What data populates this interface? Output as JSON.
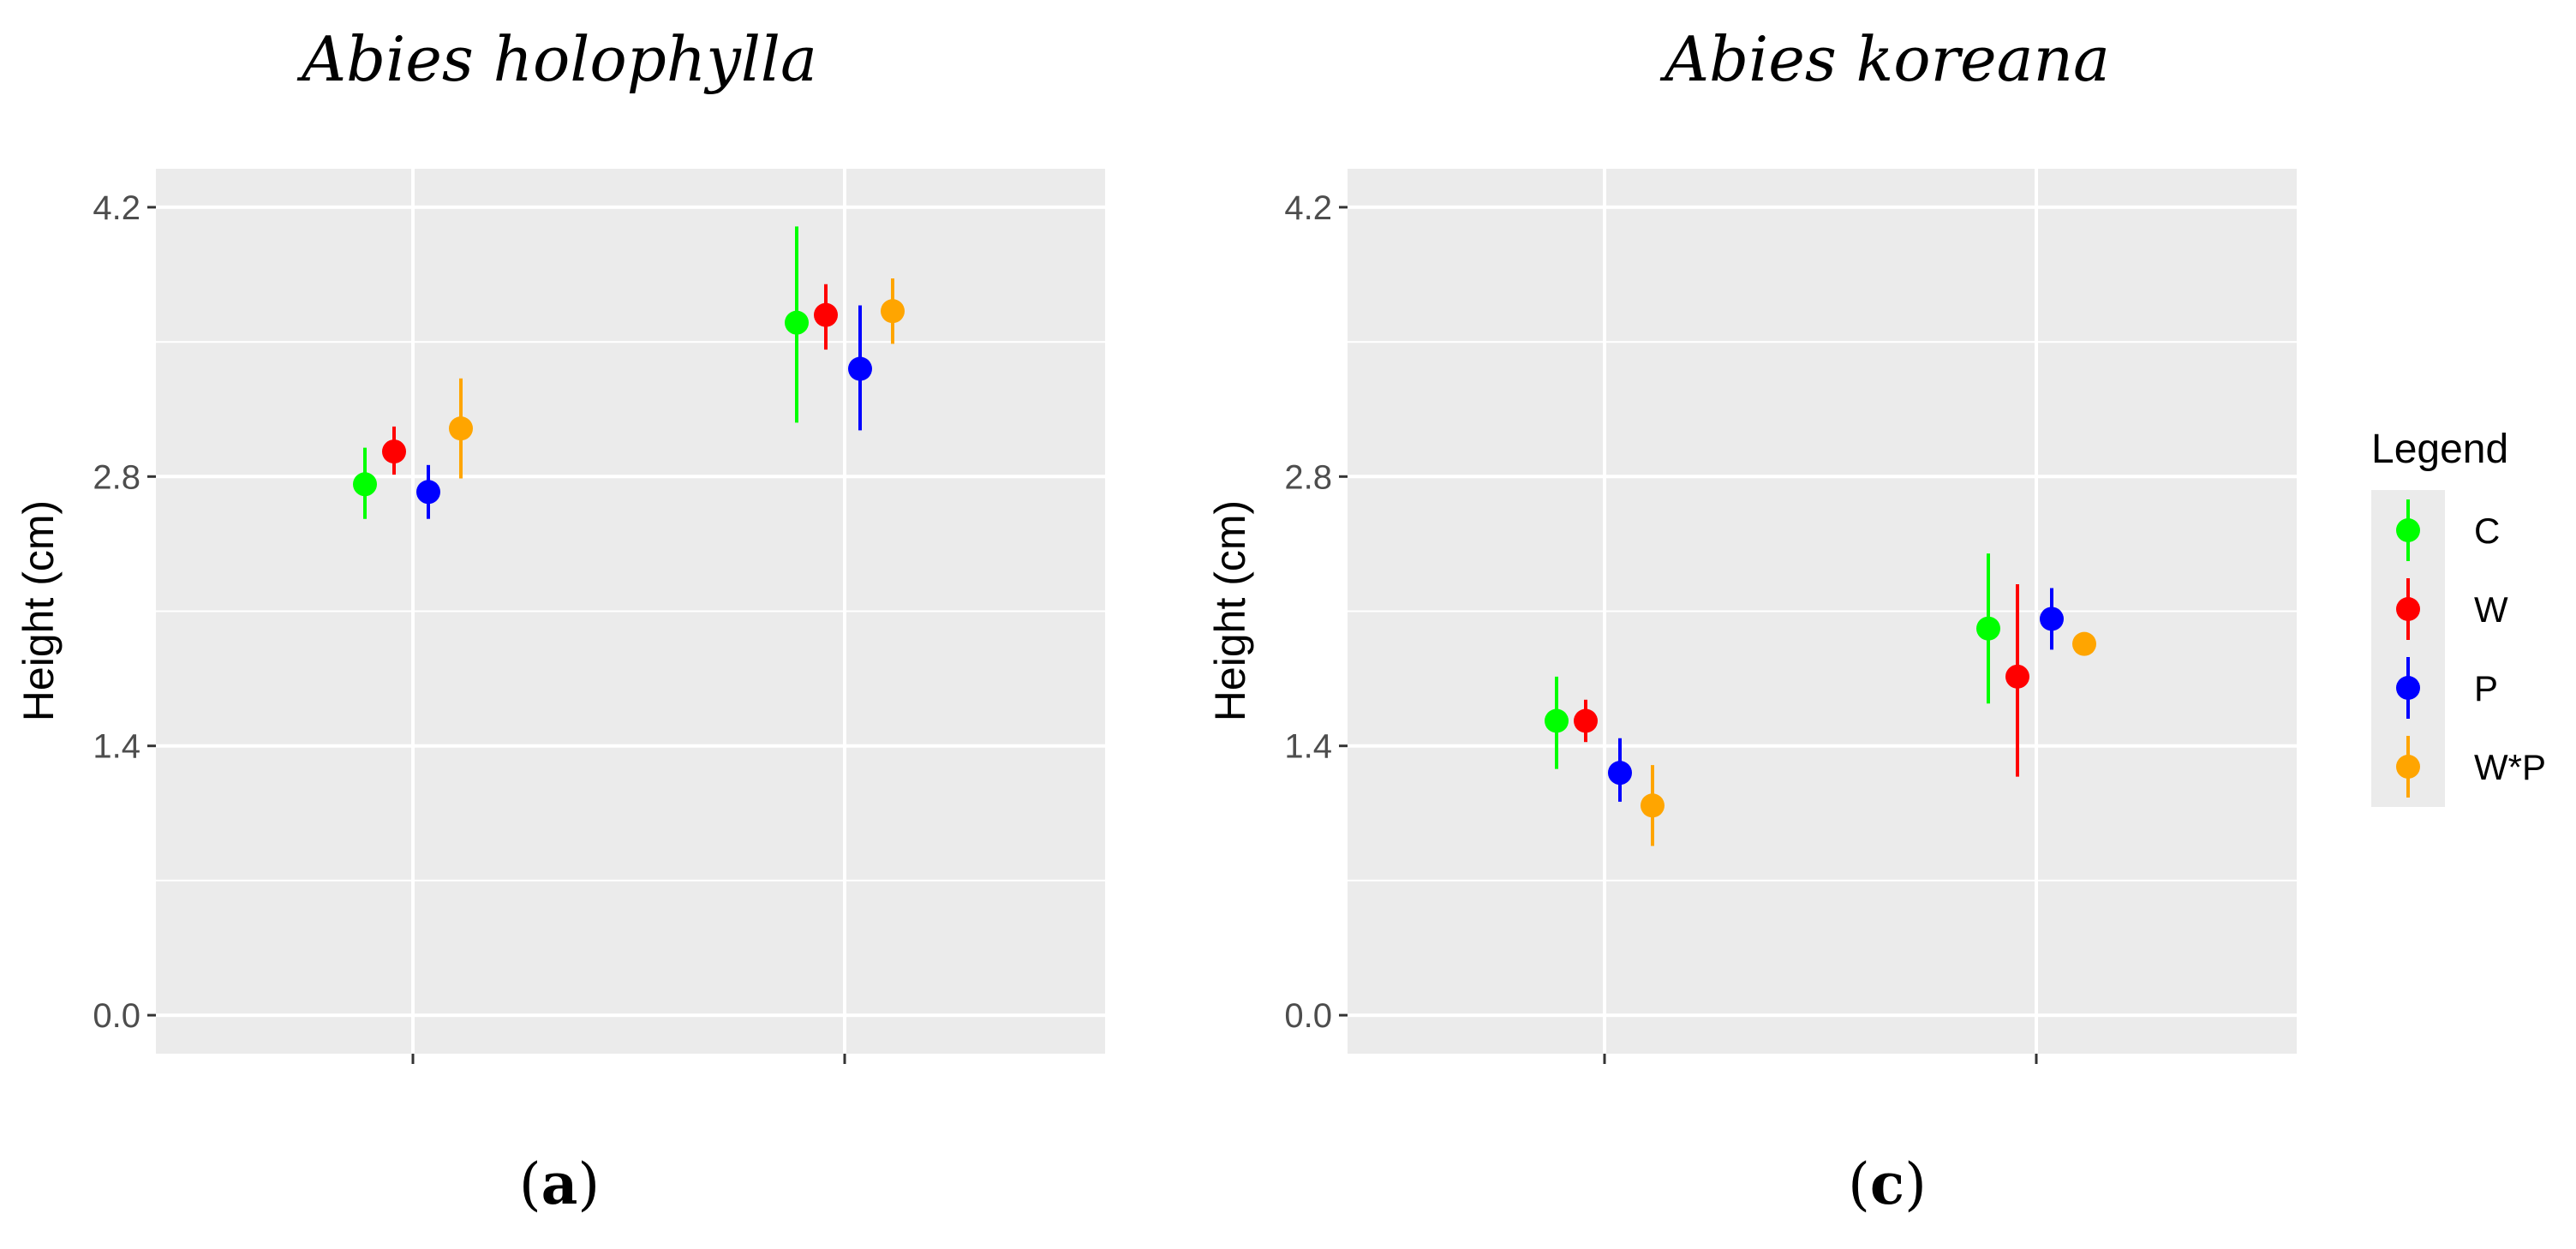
{
  "chart_data": [
    {
      "type": "pointrange",
      "title": "Abies holophylla",
      "caption_open": "(",
      "caption_letter": "a",
      "caption_close": ")",
      "xlabel": "",
      "ylabel": "Height (cm)",
      "ylim": [
        -0.2,
        4.4
      ],
      "yticks": [
        0.0,
        1.4,
        2.8,
        4.2
      ],
      "ytick_labels": [
        "0.0",
        "1.4",
        "2.8",
        "4.2"
      ],
      "grid": true,
      "groups": 2,
      "series": [
        {
          "name": "C",
          "values": [
            2.76,
            3.6
          ],
          "lower": [
            2.58,
            3.08
          ],
          "upper": [
            2.95,
            4.1
          ]
        },
        {
          "name": "W",
          "values": [
            2.93,
            3.64
          ],
          "lower": [
            2.81,
            3.46
          ],
          "upper": [
            3.06,
            3.8
          ]
        },
        {
          "name": "P",
          "values": [
            2.72,
            3.36
          ],
          "lower": [
            2.58,
            3.04
          ],
          "upper": [
            2.86,
            3.69
          ]
        },
        {
          "name": "W*P",
          "values": [
            3.05,
            3.66
          ],
          "lower": [
            2.79,
            3.49
          ],
          "upper": [
            3.31,
            3.83
          ]
        }
      ]
    },
    {
      "type": "pointrange",
      "title": "Abies koreana",
      "caption_open": "(",
      "caption_letter": "c",
      "caption_close": ")",
      "xlabel": "",
      "ylabel": "Height (cm)",
      "ylim": [
        -0.2,
        4.4
      ],
      "yticks": [
        0.0,
        1.4,
        2.8,
        4.2
      ],
      "ytick_labels": [
        "0.0",
        "1.4",
        "2.8",
        "4.2"
      ],
      "grid": true,
      "groups": 2,
      "series": [
        {
          "name": "C",
          "values": [
            1.53,
            2.01
          ],
          "lower": [
            1.28,
            1.62
          ],
          "upper": [
            1.76,
            2.4
          ]
        },
        {
          "name": "W",
          "values": [
            1.53,
            1.76
          ],
          "lower": [
            1.42,
            1.24
          ],
          "upper": [
            1.64,
            2.24
          ]
        },
        {
          "name": "P",
          "values": [
            1.26,
            2.06
          ],
          "lower": [
            1.11,
            1.9
          ],
          "upper": [
            1.44,
            2.22
          ]
        },
        {
          "name": "W*P",
          "values": [
            1.09,
            1.93
          ],
          "lower": [
            0.88,
            1.93
          ],
          "upper": [
            1.3,
            1.93
          ]
        }
      ]
    }
  ],
  "legend": {
    "title": "Legend",
    "items": [
      {
        "label": "C",
        "color": "#00ff00"
      },
      {
        "label": "W",
        "color": "#ff0000"
      },
      {
        "label": "P",
        "color": "#0000ff"
      },
      {
        "label": "W*P",
        "color": "#ffa500"
      }
    ]
  },
  "colors": {
    "panel_bg": "#ebebeb",
    "grid": "#ffffff",
    "tick_text": "#4d4d4d",
    "tick_mark": "#333333"
  }
}
